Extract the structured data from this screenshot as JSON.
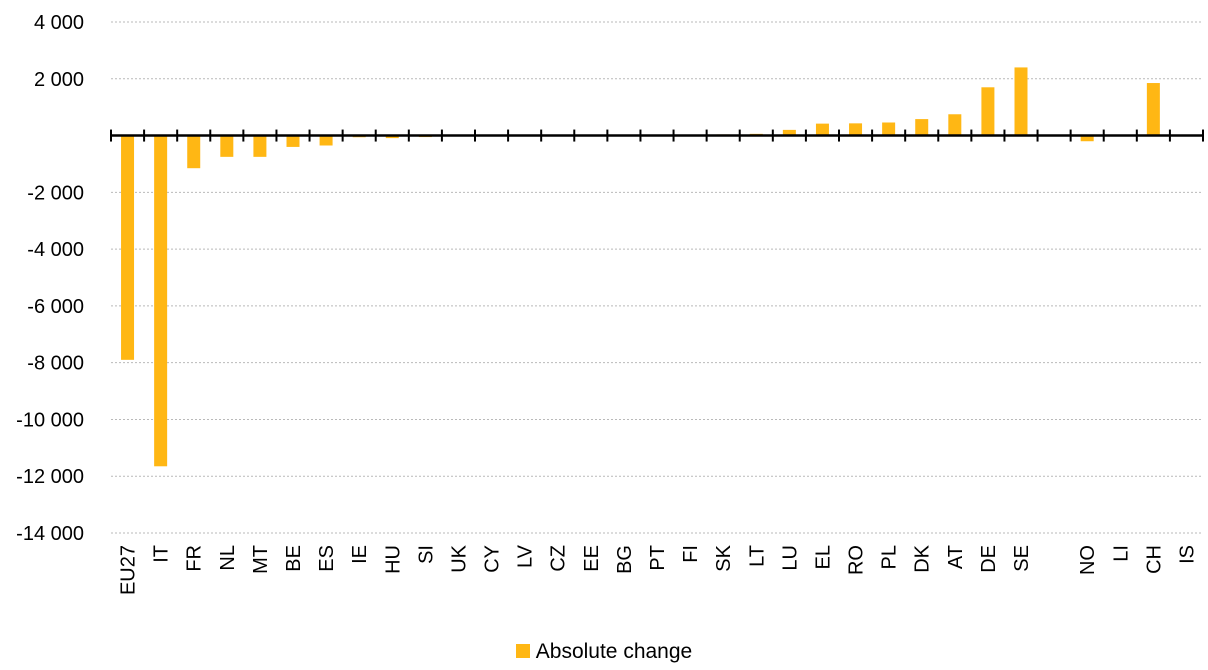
{
  "chart_data": {
    "type": "bar",
    "categories": [
      "EU27",
      "IT",
      "FR",
      "NL",
      "MT",
      "BE",
      "ES",
      "IE",
      "HU",
      "SI",
      "UK",
      "CY",
      "LV",
      "CZ",
      "EE",
      "BG",
      "PT",
      "FI",
      "SK",
      "LT",
      "LU",
      "EL",
      "RO",
      "PL",
      "DK",
      "AT",
      "DE",
      "SE",
      "",
      "NO",
      "LI",
      "CH",
      "IS"
    ],
    "series": [
      {
        "name": "Absolute change",
        "color": "#ffb714",
        "values": [
          -7900,
          -11650,
          -1150,
          -750,
          -750,
          -400,
          -350,
          -60,
          -90,
          -50,
          0,
          0,
          0,
          0,
          0,
          0,
          0,
          0,
          40,
          60,
          200,
          420,
          430,
          460,
          580,
          750,
          1700,
          2400,
          null,
          -200,
          0,
          1850,
          0
        ]
      }
    ],
    "ylim": [
      -14000,
      4000
    ],
    "yticks": [
      {
        "value": 4000,
        "label": "4 000"
      },
      {
        "value": 2000,
        "label": "2 000"
      },
      {
        "value": -2000,
        "label": "-2 000"
      },
      {
        "value": -4000,
        "label": "-4 000"
      },
      {
        "value": -6000,
        "label": "-6 000"
      },
      {
        "value": -8000,
        "label": "-8 000"
      },
      {
        "value": -10000,
        "label": "-10 000"
      },
      {
        "value": -12000,
        "label": "-12 000"
      },
      {
        "value": -14000,
        "label": "-14 000"
      }
    ],
    "grid": true,
    "legend_position": "bottom-center",
    "title": "",
    "xlabel": "",
    "ylabel": ""
  },
  "legend": {
    "label": "Absolute change",
    "color": "#ffb714"
  }
}
